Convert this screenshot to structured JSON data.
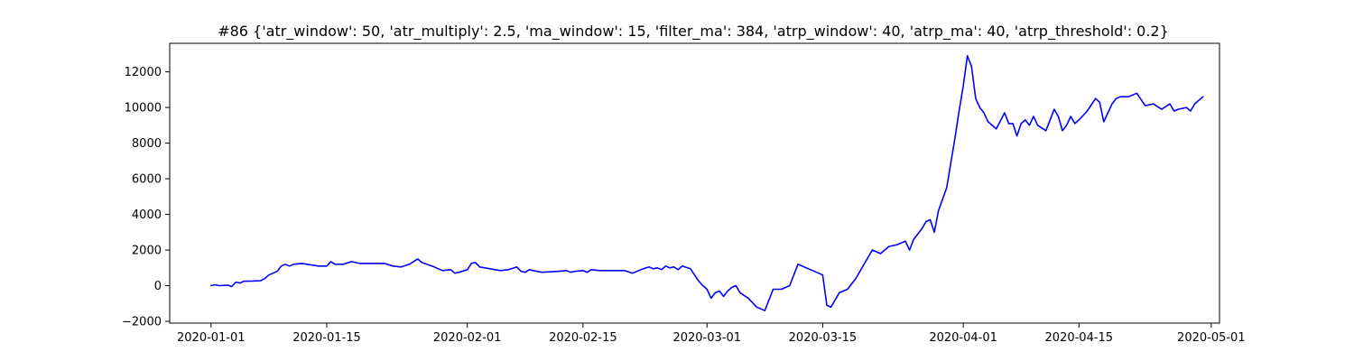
{
  "chart_data": {
    "type": "line",
    "title": "#86 {'atr_window': 50, 'atr_multiply': 2.5, 'ma_window': 15, 'filter_ma': 384, 'atrp_window': 40, 'atrp_ma': 40, 'atrp_threshold': 0.2}",
    "xlabel": "",
    "ylabel": "",
    "x_tick_labels": [
      "2020-01-01",
      "2020-01-15",
      "2020-02-01",
      "2020-02-15",
      "2020-03-01",
      "2020-03-15",
      "2020-04-01",
      "2020-04-15",
      "2020-05-01"
    ],
    "y_tick_labels": [
      "−2000",
      "0",
      "2000",
      "4000",
      "6000",
      "8000",
      "10000",
      "12000"
    ],
    "y_ticks": [
      -2000,
      0,
      2000,
      4000,
      6000,
      8000,
      10000,
      12000
    ],
    "xlim": [
      "2019-12-27",
      "2020-05-02"
    ],
    "ylim": [
      -2100,
      13600
    ],
    "grid": false,
    "series": [
      {
        "color": "#0000ff",
        "points": [
          [
            "2020-01-01",
            0
          ],
          [
            "2020-01-01",
            50
          ],
          [
            "2020-01-02",
            0
          ],
          [
            "2020-01-03",
            30
          ],
          [
            "2020-01-03",
            -50
          ],
          [
            "2020-01-04",
            200
          ],
          [
            "2020-01-04",
            150
          ],
          [
            "2020-01-05",
            250
          ],
          [
            "2020-01-06",
            260
          ],
          [
            "2020-01-07",
            280
          ],
          [
            "2020-01-07",
            400
          ],
          [
            "2020-01-08",
            600
          ],
          [
            "2020-01-09",
            800
          ],
          [
            "2020-01-09",
            1100
          ],
          [
            "2020-01-10",
            1200
          ],
          [
            "2020-01-10",
            1100
          ],
          [
            "2020-01-11",
            1200
          ],
          [
            "2020-01-12",
            1250
          ],
          [
            "2020-01-14",
            1100
          ],
          [
            "2020-01-15",
            1100
          ],
          [
            "2020-01-15",
            1350
          ],
          [
            "2020-01-16",
            1200
          ],
          [
            "2020-01-17",
            1200
          ],
          [
            "2020-01-18",
            1350
          ],
          [
            "2020-01-19",
            1250
          ],
          [
            "2020-01-22",
            1250
          ],
          [
            "2020-01-23",
            1100
          ],
          [
            "2020-01-24",
            1050
          ],
          [
            "2020-01-25",
            1200
          ],
          [
            "2020-01-26",
            1500
          ],
          [
            "2020-01-26",
            1300
          ],
          [
            "2020-01-28",
            1050
          ],
          [
            "2020-01-29",
            850
          ],
          [
            "2020-01-30",
            900
          ],
          [
            "2020-01-30",
            700
          ],
          [
            "2020-01-31",
            750
          ],
          [
            "2020-02-01",
            900
          ],
          [
            "2020-02-01",
            1250
          ],
          [
            "2020-02-02",
            1300
          ],
          [
            "2020-02-02",
            1050
          ],
          [
            "2020-02-05",
            850
          ],
          [
            "2020-02-06",
            900
          ],
          [
            "2020-02-07",
            1050
          ],
          [
            "2020-02-07",
            800
          ],
          [
            "2020-02-08",
            750
          ],
          [
            "2020-02-08",
            900
          ],
          [
            "2020-02-09",
            850
          ],
          [
            "2020-02-10",
            750
          ],
          [
            "2020-02-12",
            800
          ],
          [
            "2020-02-13",
            850
          ],
          [
            "2020-02-13",
            750
          ],
          [
            "2020-02-14",
            800
          ],
          [
            "2020-02-15",
            850
          ],
          [
            "2020-02-15",
            750
          ],
          [
            "2020-02-16",
            900
          ],
          [
            "2020-02-17",
            850
          ],
          [
            "2020-02-20",
            850
          ],
          [
            "2020-02-21",
            700
          ],
          [
            "2020-02-22",
            900
          ],
          [
            "2020-02-23",
            1050
          ],
          [
            "2020-02-23",
            950
          ],
          [
            "2020-02-24",
            1000
          ],
          [
            "2020-02-24",
            900
          ],
          [
            "2020-02-25",
            1100
          ],
          [
            "2020-02-25",
            1000
          ],
          [
            "2020-02-26",
            1050
          ],
          [
            "2020-02-26",
            900
          ],
          [
            "2020-02-27",
            1100
          ],
          [
            "2020-02-28",
            950
          ],
          [
            "2020-02-28",
            600
          ],
          [
            "2020-02-29",
            250
          ],
          [
            "2020-02-29",
            0
          ],
          [
            "2020-03-01",
            -200
          ],
          [
            "2020-03-01",
            -700
          ],
          [
            "2020-03-02",
            -400
          ],
          [
            "2020-03-02",
            -300
          ],
          [
            "2020-03-03",
            -600
          ],
          [
            "2020-03-03",
            -300
          ],
          [
            "2020-03-04",
            -100
          ],
          [
            "2020-03-04",
            0
          ],
          [
            "2020-03-05",
            -400
          ],
          [
            "2020-03-06",
            -700
          ],
          [
            "2020-03-07",
            -1200
          ],
          [
            "2020-03-08",
            -1400
          ],
          [
            "2020-03-09",
            -200
          ],
          [
            "2020-03-10",
            -200
          ],
          [
            "2020-03-11",
            0
          ],
          [
            "2020-03-12",
            1200
          ],
          [
            "2020-03-14",
            800
          ],
          [
            "2020-03-15",
            600
          ],
          [
            "2020-03-15",
            -1100
          ],
          [
            "2020-03-16",
            -1200
          ],
          [
            "2020-03-16",
            -800
          ],
          [
            "2020-03-17",
            -400
          ],
          [
            "2020-03-18",
            -200
          ],
          [
            "2020-03-19",
            400
          ],
          [
            "2020-03-20",
            1200
          ],
          [
            "2020-03-20",
            1600
          ],
          [
            "2020-03-21",
            2000
          ],
          [
            "2020-03-22",
            1800
          ],
          [
            "2020-03-23",
            2200
          ],
          [
            "2020-03-24",
            2300
          ],
          [
            "2020-03-24",
            2400
          ],
          [
            "2020-03-25",
            2500
          ],
          [
            "2020-03-25",
            2000
          ],
          [
            "2020-03-26",
            2600
          ],
          [
            "2020-03-27",
            3200
          ],
          [
            "2020-03-27",
            3600
          ],
          [
            "2020-03-28",
            3700
          ],
          [
            "2020-03-28",
            3000
          ],
          [
            "2020-03-29",
            4200
          ],
          [
            "2020-03-30",
            5500
          ],
          [
            "2020-03-31",
            8300
          ],
          [
            "2020-03-31",
            9800
          ],
          [
            "2020-04-01",
            11200
          ],
          [
            "2020-04-01",
            12900
          ],
          [
            "2020-04-02",
            12300
          ],
          [
            "2020-04-02",
            10500
          ],
          [
            "2020-04-03",
            10000
          ],
          [
            "2020-04-03",
            9700
          ],
          [
            "2020-04-04",
            9200
          ],
          [
            "2020-04-05",
            8800
          ],
          [
            "2020-04-06",
            9700
          ],
          [
            "2020-04-06",
            9100
          ],
          [
            "2020-04-07",
            9100
          ],
          [
            "2020-04-07",
            8400
          ],
          [
            "2020-04-08",
            9100
          ],
          [
            "2020-04-08",
            9300
          ],
          [
            "2020-04-09",
            9000
          ],
          [
            "2020-04-09",
            9500
          ],
          [
            "2020-04-10",
            9000
          ],
          [
            "2020-04-11",
            8700
          ],
          [
            "2020-04-12",
            9900
          ],
          [
            "2020-04-12",
            9500
          ],
          [
            "2020-04-13",
            8700
          ],
          [
            "2020-04-13",
            9000
          ],
          [
            "2020-04-14",
            9500
          ],
          [
            "2020-04-14",
            9100
          ],
          [
            "2020-04-15",
            9300
          ],
          [
            "2020-04-16",
            9800
          ],
          [
            "2020-04-17",
            10500
          ],
          [
            "2020-04-17",
            10300
          ],
          [
            "2020-04-18",
            9200
          ],
          [
            "2020-04-19",
            10200
          ],
          [
            "2020-04-19",
            10500
          ],
          [
            "2020-04-20",
            10600
          ],
          [
            "2020-04-21",
            10600
          ],
          [
            "2020-04-22",
            10800
          ],
          [
            "2020-04-23",
            10100
          ],
          [
            "2020-04-24",
            10200
          ],
          [
            "2020-04-25",
            9900
          ],
          [
            "2020-04-26",
            10200
          ],
          [
            "2020-04-26",
            9800
          ],
          [
            "2020-04-27",
            9900
          ],
          [
            "2020-04-28",
            10000
          ],
          [
            "2020-04-28",
            9800
          ],
          [
            "2020-04-29",
            10200
          ],
          [
            "2020-04-30",
            10600
          ]
        ]
      }
    ]
  }
}
